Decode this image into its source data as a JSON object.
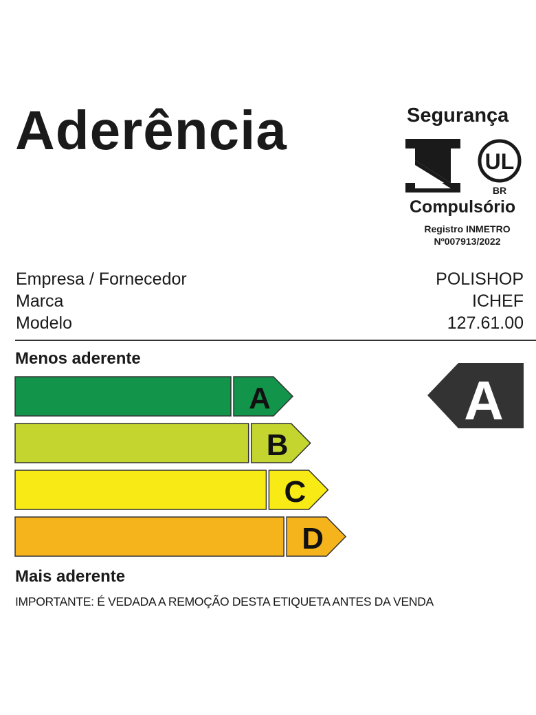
{
  "title": "Aderência",
  "certification": {
    "top_label": "Segurança",
    "bottom_label": "Compulsório",
    "inmetro_logo": "inmetro-logo",
    "ul_logo": {
      "letters": "UL",
      "sub": "BR"
    },
    "registry_line1": "Registro INMETRO",
    "registry_line2": "Nº007913/2022"
  },
  "info": [
    {
      "label": "Empresa / Fornecedor",
      "value": "POLISHOP"
    },
    {
      "label": "Marca",
      "value": "ICHEF"
    },
    {
      "label": "Modelo",
      "value": "127.61.00"
    }
  ],
  "scale": {
    "top_label": "Menos aderente",
    "bottom_label": "Mais aderente",
    "classes": [
      {
        "letter": "A",
        "color": "#12954a"
      },
      {
        "letter": "B",
        "color": "#c3d52e"
      },
      {
        "letter": "C",
        "color": "#f8ea14"
      },
      {
        "letter": "D",
        "color": "#f5b41b"
      }
    ]
  },
  "rating": {
    "letter": "A",
    "color": "#333333"
  },
  "notice": "IMPORTANTE: É VEDADA A REMOÇÃO DESTA ETIQUETA ANTES DA VENDA"
}
